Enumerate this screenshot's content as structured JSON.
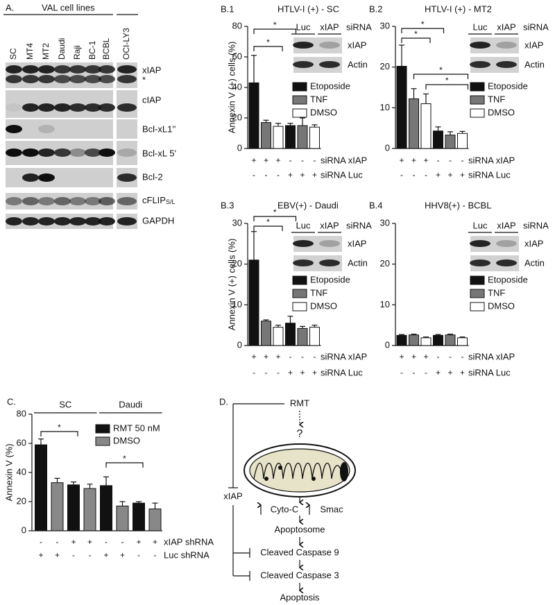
{
  "blot": {
    "panel": "A.",
    "title": "VAL cell lines",
    "lanes": [
      "SC",
      "MT4",
      "MT2",
      "Daudi",
      "Raji",
      "BC-1",
      "BCBL",
      "OCI-LY3"
    ],
    "rows": [
      "xIAP",
      "*",
      "cIAP",
      "Bcl-xL1''",
      "Bcl-xL 5'",
      "Bcl-2",
      {
        "main": "cFLIP",
        "sub": "S/L"
      },
      "GAPDH"
    ]
  },
  "chart_data": [
    {
      "type": "bar",
      "panel": "B.1",
      "title": "HTLV-I (+) - SC",
      "ylabel": "Annexin V (+) cells (%)",
      "ylim": [
        0,
        80
      ],
      "yticks": [
        0,
        20,
        40,
        60,
        80
      ],
      "series": [
        {
          "name": "Etoposide",
          "color": "#111111",
          "values": [
            43,
            15
          ],
          "errors": [
            18,
            1.5
          ]
        },
        {
          "name": "TNF",
          "color": "#777777",
          "values": [
            17,
            15
          ],
          "errors": [
            1.5,
            5
          ]
        },
        {
          "name": "DMSO",
          "color": "#ffffff",
          "values": [
            14.5,
            14
          ],
          "errors": [
            2,
            1.5
          ]
        }
      ],
      "rows": [
        {
          "label": "siRNA xIAP",
          "marks": [
            "+",
            "+",
            "+",
            "-",
            "-",
            "-"
          ]
        },
        {
          "label": "siRNA Luc",
          "marks": [
            "-",
            "-",
            "-",
            "+",
            "+",
            "+"
          ]
        }
      ],
      "inset": {
        "lanes": [
          "Luc",
          "xIAP"
        ],
        "header": "siRNA",
        "bands": [
          "xIAP",
          "Actin"
        ]
      },
      "annotations": [
        "*",
        "*"
      ]
    },
    {
      "type": "bar",
      "panel": "B.2",
      "title": "HTLV-I (+) - MT2",
      "ylim": [
        0,
        30
      ],
      "yticks": [
        0,
        10,
        20,
        30
      ],
      "series": [
        {
          "name": "Etoposide",
          "color": "#111111",
          "values": [
            20.2,
            4.3
          ],
          "errors": [
            5.2,
            1
          ]
        },
        {
          "name": "TNF",
          "color": "#777777",
          "values": [
            12.2,
            3.3
          ],
          "errors": [
            2.5,
            0.8
          ]
        },
        {
          "name": "DMSO",
          "color": "#ffffff",
          "values": [
            11,
            3.7
          ],
          "errors": [
            2.4,
            0.5
          ]
        }
      ],
      "rows": [
        {
          "label": "siRNA xIAP",
          "marks": [
            "+",
            "+",
            "+",
            "-",
            "-",
            "-"
          ]
        },
        {
          "label": "siRNA Luc",
          "marks": [
            "-",
            "-",
            "-",
            "+",
            "+",
            "+"
          ]
        }
      ],
      "inset": {
        "lanes": [
          "Luc",
          "xIAP"
        ],
        "header": "siRNA",
        "bands": [
          "xIAP",
          "Actin"
        ]
      },
      "annotations": [
        "*",
        "*",
        "*",
        "*"
      ]
    },
    {
      "type": "bar",
      "panel": "B.3",
      "title": "EBV(+) - Daudi",
      "ylabel": "Annexin V (+) cells (%)",
      "ylim": [
        0,
        30
      ],
      "yticks": [
        0,
        10,
        20,
        30
      ],
      "series": [
        {
          "name": "Etoposide",
          "color": "#111111",
          "values": [
            21,
            5.5
          ],
          "errors": [
            7,
            1.7
          ]
        },
        {
          "name": "TNF",
          "color": "#777777",
          "values": [
            6,
            4.2
          ],
          "errors": [
            0.3,
            0.5
          ]
        },
        {
          "name": "DMSO",
          "color": "#ffffff",
          "values": [
            4.5,
            4.5
          ],
          "errors": [
            0.5,
            0.5
          ]
        }
      ],
      "rows": [
        {
          "label": "siRNA xIAP",
          "marks": [
            "+",
            "+",
            "+",
            "-",
            "-",
            "-"
          ]
        },
        {
          "label": "siRNA Luc",
          "marks": [
            "-",
            "-",
            "-",
            "+",
            "+",
            "+"
          ]
        }
      ],
      "inset": {
        "lanes": [
          "Luc",
          "xIAP"
        ],
        "header": "siRNA",
        "bands": [
          "xIAP",
          "Actin"
        ]
      },
      "annotations": [
        "*",
        "*"
      ]
    },
    {
      "type": "bar",
      "panel": "B.4",
      "title": "HHV8(+) - BCBL",
      "ylim": [
        0,
        30
      ],
      "yticks": [
        0,
        10,
        20,
        30
      ],
      "series": [
        {
          "name": "Etoposide",
          "color": "#111111",
          "values": [
            2.5,
            2.5
          ],
          "errors": [
            0.2,
            0.2
          ]
        },
        {
          "name": "TNF",
          "color": "#777777",
          "values": [
            2.6,
            2.6
          ],
          "errors": [
            0.2,
            0.2
          ]
        },
        {
          "name": "DMSO",
          "color": "#ffffff",
          "values": [
            1.9,
            1.9
          ],
          "errors": [
            0.2,
            0.2
          ]
        }
      ],
      "rows": [
        {
          "label": "siRNA xIAP",
          "marks": [
            "+",
            "+",
            "+",
            "-",
            "-",
            "-"
          ]
        },
        {
          "label": "siRNA Luc",
          "marks": [
            "-",
            "-",
            "-",
            "+",
            "+",
            "+"
          ]
        }
      ],
      "inset": {
        "lanes": [
          "Luc",
          "xIAP"
        ],
        "header": "siRNA",
        "bands": [
          "xIAP",
          "Actin"
        ]
      }
    },
    {
      "type": "bar",
      "panel": "C.",
      "ylabel": "Annexin V  (%)",
      "ylim": [
        0,
        80
      ],
      "yticks": [
        0,
        20,
        40,
        60,
        80
      ],
      "groups": [
        "SC",
        "Daudi"
      ],
      "series": [
        {
          "name": "RMT 50 nM",
          "color": "#111111",
          "values": [
            59,
            31.5,
            31,
            19
          ],
          "errors": [
            4,
            2,
            6,
            1
          ]
        },
        {
          "name": "DMSO",
          "color": "#888888",
          "values": [
            33,
            29,
            17,
            15
          ],
          "errors": [
            3,
            3,
            3,
            4
          ]
        }
      ],
      "rows": [
        {
          "label": "xIAP shRNA",
          "marks": [
            "-",
            "-",
            "+",
            "+",
            "-",
            "-",
            "+",
            "+"
          ]
        },
        {
          "label": "Luc shRNA",
          "marks": [
            "+",
            "+",
            "-",
            "-",
            "+",
            "+",
            "-",
            "-"
          ]
        }
      ],
      "annotations": [
        "*",
        "*"
      ]
    }
  ],
  "diagram": {
    "panel": "D.",
    "nodes": [
      "RMT",
      "?",
      "xIAP",
      "Cyto-C",
      "Smac",
      "Apoptosome",
      "Cleaved Caspase 9",
      "Cleaved Caspase 3",
      "Apoptosis"
    ]
  }
}
